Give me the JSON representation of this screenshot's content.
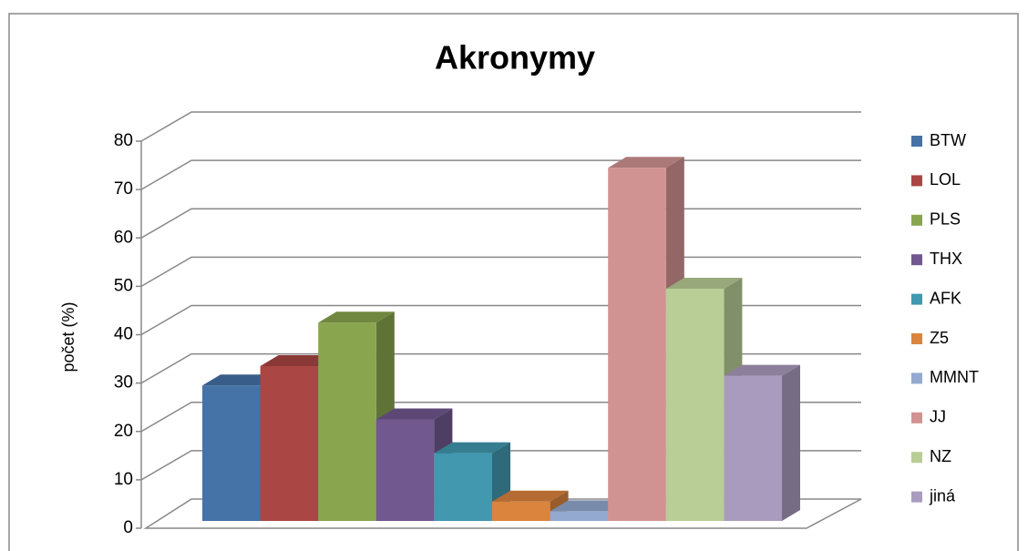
{
  "chart_data": {
    "type": "bar3d",
    "title": "Akronymy",
    "y_label": "počet (%)",
    "categories": [
      null
    ],
    "series": [
      {
        "name": "BTW",
        "color": "#4572a7",
        "values": [
          28
        ]
      },
      {
        "name": "LOL",
        "color": "#aa4643",
        "values": [
          32
        ]
      },
      {
        "name": "PLS",
        "color": "#89a54e",
        "values": [
          41
        ]
      },
      {
        "name": "THX",
        "color": "#71588f",
        "values": [
          21
        ]
      },
      {
        "name": "AFK",
        "color": "#4198af",
        "values": [
          14
        ]
      },
      {
        "name": "Z5",
        "color": "#db843d",
        "values": [
          4
        ]
      },
      {
        "name": "MMNT",
        "color": "#93a9cf",
        "values": [
          2
        ]
      },
      {
        "name": "JJ",
        "color": "#d19392",
        "values": [
          73
        ]
      },
      {
        "name": "NZ",
        "color": "#b9cd96",
        "values": [
          48
        ]
      },
      {
        "name": "jiná",
        "color": "#a99bbd",
        "values": [
          30
        ]
      }
    ],
    "ylim": [
      0,
      80
    ],
    "yticks": [
      0,
      10,
      20,
      30,
      40,
      50,
      60,
      70,
      80
    ],
    "grid": true,
    "legend": "right"
  }
}
